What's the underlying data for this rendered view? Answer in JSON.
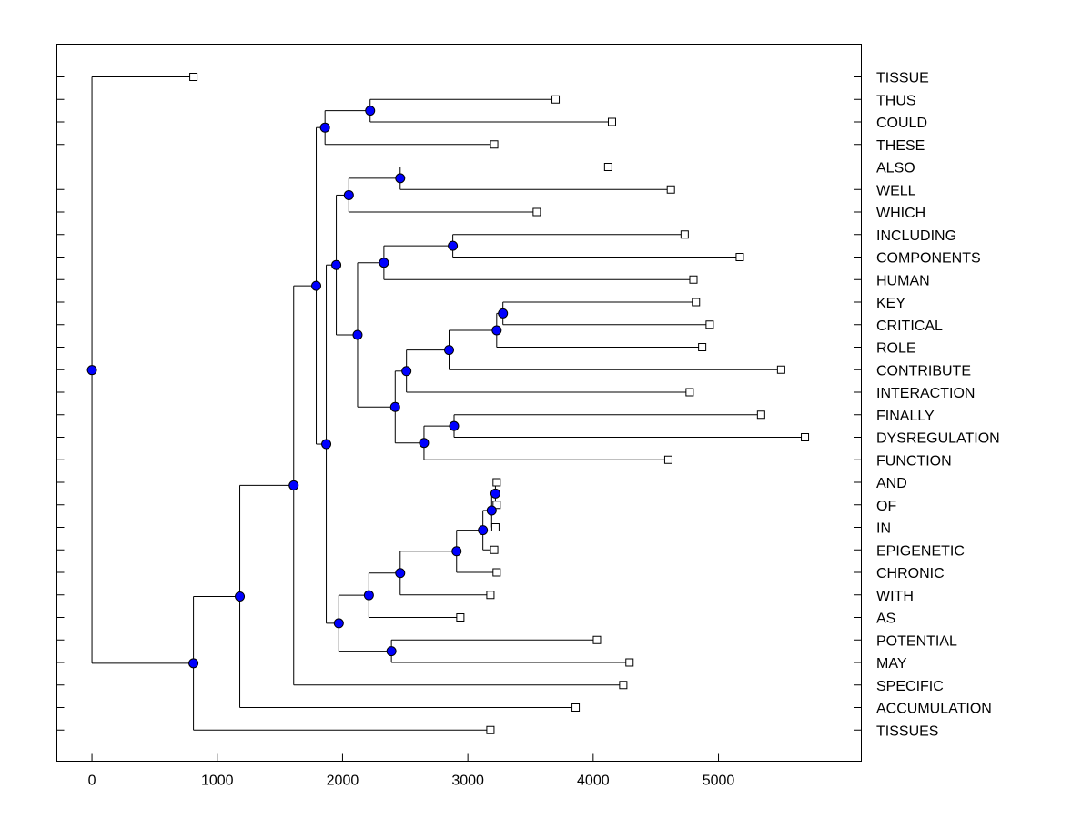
{
  "chart_data": {
    "type": "dendrogram",
    "title": "",
    "xlabel": "",
    "ylabel": "",
    "xlim": [
      -280,
      6140
    ],
    "xticks": [
      0,
      1000,
      2000,
      3000,
      4000,
      5000
    ],
    "grid": false,
    "leaves": [
      {
        "label": "TISSUE",
        "x": 810
      },
      {
        "label": "THUS",
        "x": 3700
      },
      {
        "label": "COULD",
        "x": 4150
      },
      {
        "label": "THESE",
        "x": 3210
      },
      {
        "label": "ALSO",
        "x": 4120
      },
      {
        "label": "WELL",
        "x": 4620
      },
      {
        "label": "WHICH",
        "x": 3550
      },
      {
        "label": "INCLUDING",
        "x": 4730
      },
      {
        "label": "COMPONENTS",
        "x": 5170
      },
      {
        "label": "HUMAN",
        "x": 4800
      },
      {
        "label": "KEY",
        "x": 4820
      },
      {
        "label": "CRITICAL",
        "x": 4930
      },
      {
        "label": "ROLE",
        "x": 4870
      },
      {
        "label": "CONTRIBUTE",
        "x": 5500
      },
      {
        "label": "INTERACTION",
        "x": 4770
      },
      {
        "label": "FINALLY",
        "x": 5340
      },
      {
        "label": "DYSREGULATION",
        "x": 5690
      },
      {
        "label": "FUNCTION",
        "x": 4600
      },
      {
        "label": "AND",
        "x": 3230
      },
      {
        "label": "OF",
        "x": 3230
      },
      {
        "label": "IN",
        "x": 3220
      },
      {
        "label": "EPIGENETIC",
        "x": 3210
      },
      {
        "label": "CHRONIC",
        "x": 3230
      },
      {
        "label": "WITH",
        "x": 3180
      },
      {
        "label": "AS",
        "x": 2940
      },
      {
        "label": "POTENTIAL",
        "x": 4030
      },
      {
        "label": "MAY",
        "x": 4290
      },
      {
        "label": "SPECIFIC",
        "x": 4240
      },
      {
        "label": "ACCUMULATION",
        "x": 3860
      },
      {
        "label": "TISSUES",
        "x": 3180
      }
    ],
    "nodes": [
      {
        "id": "n1",
        "x": 3220,
        "children": [
          "AND",
          "OF"
        ]
      },
      {
        "id": "n2",
        "x": 3190,
        "children": [
          "n1",
          "IN"
        ]
      },
      {
        "id": "n3",
        "x": 3120,
        "children": [
          "n2",
          "EPIGENETIC"
        ]
      },
      {
        "id": "n4",
        "x": 2910,
        "children": [
          "n3",
          "CHRONIC"
        ]
      },
      {
        "id": "n5",
        "x": 2460,
        "children": [
          "n4",
          "WITH"
        ]
      },
      {
        "id": "n6",
        "x": 2210,
        "children": [
          "n5",
          "AS"
        ]
      },
      {
        "id": "n7",
        "x": 2390,
        "children": [
          "POTENTIAL",
          "MAY"
        ]
      },
      {
        "id": "n8",
        "x": 1970,
        "children": [
          "n6",
          "n7"
        ]
      },
      {
        "id": "n9",
        "x": 3280,
        "children": [
          "KEY",
          "CRITICAL"
        ]
      },
      {
        "id": "n10",
        "x": 3230,
        "children": [
          "n9",
          "ROLE"
        ]
      },
      {
        "id": "n11",
        "x": 2850,
        "children": [
          "n10",
          "CONTRIBUTE"
        ]
      },
      {
        "id": "n12",
        "x": 2510,
        "children": [
          "n11",
          "INTERACTION"
        ]
      },
      {
        "id": "n13",
        "x": 2890,
        "children": [
          "FINALLY",
          "DYSREGULATION"
        ]
      },
      {
        "id": "n14",
        "x": 2650,
        "children": [
          "n13",
          "FUNCTION"
        ]
      },
      {
        "id": "n15",
        "x": 2420,
        "children": [
          "n12",
          "n14"
        ]
      },
      {
        "id": "n16",
        "x": 2880,
        "children": [
          "INCLUDING",
          "COMPONENTS"
        ]
      },
      {
        "id": "n17",
        "x": 2330,
        "children": [
          "n16",
          "HUMAN"
        ]
      },
      {
        "id": "n18",
        "x": 2120,
        "children": [
          "n17",
          "n15"
        ]
      },
      {
        "id": "n19",
        "x": 2460,
        "children": [
          "ALSO",
          "WELL"
        ]
      },
      {
        "id": "n20",
        "x": 2050,
        "children": [
          "n19",
          "WHICH"
        ]
      },
      {
        "id": "n21",
        "x": 1950,
        "children": [
          "n20",
          "n18"
        ]
      },
      {
        "id": "n22",
        "x": 1870,
        "children": [
          "n21",
          "n8"
        ]
      },
      {
        "id": "n23",
        "x": 2220,
        "children": [
          "THUS",
          "COULD"
        ]
      },
      {
        "id": "n24",
        "x": 1860,
        "children": [
          "n23",
          "THESE"
        ]
      },
      {
        "id": "n25",
        "x": 1790,
        "children": [
          "n24",
          "n22"
        ]
      },
      {
        "id": "n26",
        "x": 1610,
        "children": [
          "n25",
          "SPECIFIC"
        ]
      },
      {
        "id": "n27",
        "x": 1180,
        "children": [
          "n26",
          "ACCUMULATION"
        ]
      },
      {
        "id": "n28",
        "x": 810,
        "children": [
          "n27",
          "TISSUES"
        ]
      },
      {
        "id": "root",
        "x": 0,
        "children": [
          "TISSUE",
          "n28"
        ]
      }
    ]
  }
}
